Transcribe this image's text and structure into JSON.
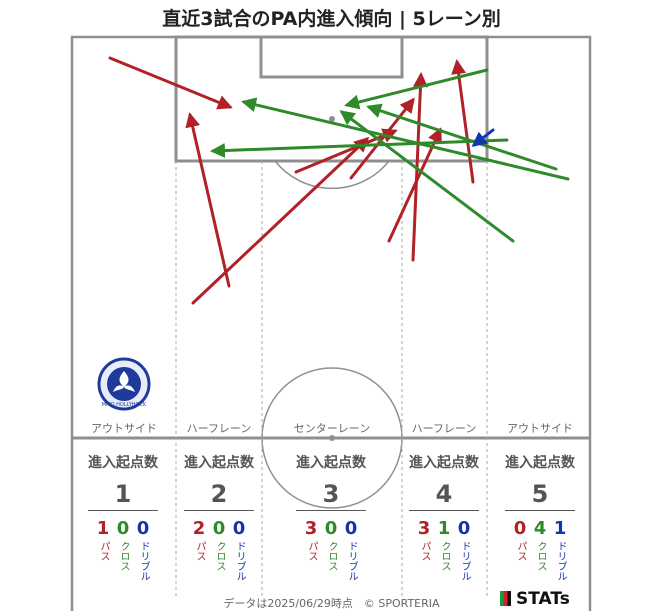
{
  "title": "直近3試合のPA内進入傾向 | 5レーン別",
  "lanes": [
    "アウトサイド",
    "ハーフレーン",
    "センターレーン",
    "ハーフレーン",
    "アウトサイド"
  ],
  "stats_header": "進入起点数",
  "stats": [
    {
      "lane": "1",
      "pass": "1",
      "cross": "0",
      "dribble": "0"
    },
    {
      "lane": "2",
      "pass": "2",
      "cross": "0",
      "dribble": "0"
    },
    {
      "lane": "3",
      "pass": "3",
      "cross": "0",
      "dribble": "0"
    },
    {
      "lane": "4",
      "pass": "3",
      "cross": "1",
      "dribble": "0"
    },
    {
      "lane": "5",
      "pass": "0",
      "cross": "4",
      "dribble": "1"
    }
  ],
  "type_labels": {
    "pass": "パス",
    "cross": "クロス",
    "dribble": "ドリブル"
  },
  "colors": {
    "pass": "#b02227",
    "cross": "#2f8b2a",
    "dribble": "#1535b0",
    "lines": "#8f8f8f"
  },
  "crest_icon": "mito-hollyhock-crest",
  "crest_text": "MITO HOLLYHOCK",
  "footer": "データは2025/06/29時点　© SPORTERIA",
  "brand": "STATs",
  "chart_data": {
    "type": "arrow-map",
    "title": "直近3試合のPA内進入傾向 | 5レーン別",
    "arrows": [
      {
        "kind": "pass",
        "from": [
          110,
          58
        ],
        "to": [
          230,
          107
        ]
      },
      {
        "kind": "pass",
        "from": [
          229,
          286
        ],
        "to": [
          190,
          115
        ]
      },
      {
        "kind": "pass",
        "from": [
          193,
          303
        ],
        "to": [
          367,
          139
        ]
      },
      {
        "kind": "pass",
        "from": [
          296,
          172
        ],
        "to": [
          395,
          131
        ]
      },
      {
        "kind": "pass",
        "from": [
          351,
          178
        ],
        "to": [
          413,
          100
        ]
      },
      {
        "kind": "pass",
        "from": [
          389,
          241
        ],
        "to": [
          440,
          130
        ]
      },
      {
        "kind": "pass",
        "from": [
          413,
          260
        ],
        "to": [
          421,
          75
        ]
      },
      {
        "kind": "pass",
        "from": [
          473,
          182
        ],
        "to": [
          457,
          62
        ]
      },
      {
        "kind": "cross",
        "from": [
          487,
          70
        ],
        "to": [
          347,
          105
        ]
      },
      {
        "kind": "cross",
        "from": [
          507,
          140
        ],
        "to": [
          213,
          151
        ]
      },
      {
        "kind": "cross",
        "from": [
          556,
          169
        ],
        "to": [
          369,
          107
        ]
      },
      {
        "kind": "cross",
        "from": [
          568,
          179
        ],
        "to": [
          244,
          102
        ]
      },
      {
        "kind": "cross",
        "from": [
          513,
          241
        ],
        "to": [
          342,
          112
        ]
      },
      {
        "kind": "dribble",
        "from": [
          493,
          130
        ],
        "to": [
          474,
          145
        ]
      }
    ],
    "lanes": [
      "アウトサイド",
      "ハーフレーン",
      "センターレーン",
      "ハーフレーン",
      "アウトサイド"
    ],
    "counts": [
      {
        "lane": 1,
        "pass": 1,
        "cross": 0,
        "dribble": 0
      },
      {
        "lane": 2,
        "pass": 2,
        "cross": 0,
        "dribble": 0
      },
      {
        "lane": 3,
        "pass": 3,
        "cross": 0,
        "dribble": 0
      },
      {
        "lane": 4,
        "pass": 3,
        "cross": 1,
        "dribble": 0
      },
      {
        "lane": 5,
        "pass": 0,
        "cross": 4,
        "dribble": 1
      }
    ]
  }
}
